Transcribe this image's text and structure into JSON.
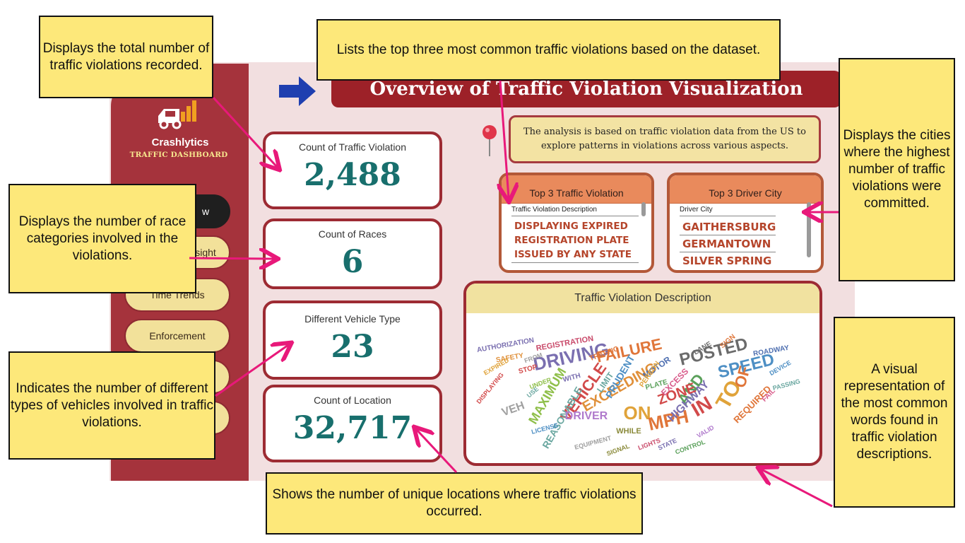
{
  "app": {
    "brand": "Crashlytics",
    "brand_sub": "TRAFFIC DASHBOARD",
    "title": "Overview of Traffic Violation Visualization",
    "description": "The analysis is based on traffic violation data from the US to explore patterns in violations across various aspects."
  },
  "nav": {
    "items": [
      {
        "label": "w",
        "active": true
      },
      {
        "label": "sight",
        "active": false
      },
      {
        "label": "Time Trends",
        "active": false
      },
      {
        "label": "Enforcement",
        "active": false
      },
      {
        "label": "",
        "active": false
      },
      {
        "label": "",
        "active": false
      }
    ]
  },
  "kpis": {
    "violations": {
      "label": "Count of Traffic Violation",
      "value": "2,488"
    },
    "races": {
      "label": "Count of Races",
      "value": "6"
    },
    "vehicle_types": {
      "label": "Different Vehicle Type",
      "value": "23"
    },
    "locations": {
      "label": "Count of Location",
      "value": "32,717"
    }
  },
  "top_violation": {
    "title": "Top 3 Traffic Violation",
    "column": "Traffic Violation Description",
    "items": [
      "DISPLAYING EXPIRED",
      "REGISTRATION PLATE",
      "ISSUED BY ANY STATE"
    ]
  },
  "top_city": {
    "title": "Top 3 Driver City",
    "column": "Driver City",
    "items": [
      "GAITHERSBURG",
      "GERMANTOWN",
      "SILVER SPRING"
    ]
  },
  "wordcloud": {
    "title": "Traffic Violation Description",
    "words": [
      {
        "t": "DRIVING",
        "c": "#7a6fb0"
      },
      {
        "t": "FAILURE",
        "c": "#e0763a"
      },
      {
        "t": "POSTED",
        "c": "#6b6b6b"
      },
      {
        "t": "SPEED",
        "c": "#4e8fc4"
      },
      {
        "t": "VEHICLE",
        "c": "#d24a4a"
      },
      {
        "t": "EXCEEDING",
        "c": "#e0903a"
      },
      {
        "t": "MAXIMUM",
        "c": "#8fbf4a"
      },
      {
        "t": "REASONABLE",
        "c": "#6aa7a0"
      },
      {
        "t": "ON",
        "c": "#e0a33a"
      },
      {
        "t": "MPH",
        "c": "#e0763a"
      },
      {
        "t": "IN",
        "c": "#d24a4a"
      },
      {
        "t": "TO",
        "c": "#e0a33a"
      },
      {
        "t": "OF",
        "c": "#e0763a"
      },
      {
        "t": "AND",
        "c": "#5aa05a"
      },
      {
        "t": "HIGHWAY",
        "c": "#7a6fb0"
      },
      {
        "t": "ZONE",
        "c": "#d24a4a"
      },
      {
        "t": "DRIVER",
        "c": "#b07acc"
      },
      {
        "t": "VEH",
        "c": "#a0a0a0"
      },
      {
        "t": "PRUDENT",
        "c": "#4e8fc4"
      },
      {
        "t": "MOTOR",
        "c": "#4e6fb0"
      },
      {
        "t": "EXCESS",
        "c": "#d85a8a"
      },
      {
        "t": "LIMIT",
        "c": "#6aa7a0"
      },
      {
        "t": "REQUIRED",
        "c": "#e0763a"
      },
      {
        "t": "WHILE",
        "c": "#8a8a3a"
      },
      {
        "t": "REGISTRATION",
        "c": "#c94a6a"
      },
      {
        "t": "AUTHORIZATION",
        "c": "#7a6fb0"
      },
      {
        "t": "SAFETY",
        "c": "#e0903a"
      },
      {
        "t": "STOP",
        "c": "#d24a4a"
      },
      {
        "t": "PLATE",
        "c": "#5aa05a"
      },
      {
        "t": "WITH",
        "c": "#7a6fb0"
      },
      {
        "t": "LICENSE",
        "c": "#4e8fc4"
      },
      {
        "t": "FROM",
        "c": "#a0a0a0"
      },
      {
        "t": "USE",
        "c": "#6aa7a0"
      },
      {
        "t": "PERSON",
        "c": "#e0a33a"
      },
      {
        "t": "UNDER",
        "c": "#8fbf4a"
      },
      {
        "t": "LANE",
        "c": "#6b6b6b"
      },
      {
        "t": "SIGN",
        "c": "#e0763a"
      },
      {
        "t": "ROADWAY",
        "c": "#4e6fb0"
      },
      {
        "t": "LIGHTS",
        "c": "#c94a6a"
      },
      {
        "t": "FAIL",
        "c": "#d85a8a"
      },
      {
        "t": "CONTROL",
        "c": "#5aa05a"
      },
      {
        "t": "VALID",
        "c": "#b07acc"
      },
      {
        "t": "STATE",
        "c": "#7a6fb0"
      },
      {
        "t": "TRAFFIC",
        "c": "#e0763a"
      },
      {
        "t": "DEVICE",
        "c": "#4e8fc4"
      },
      {
        "t": "SIGNAL",
        "c": "#8a8a3a"
      },
      {
        "t": "PASSING",
        "c": "#6aa7a0"
      },
      {
        "t": "EQUIPMENT",
        "c": "#a0a0a0"
      },
      {
        "t": "DISPLAYING",
        "c": "#d24a4a"
      },
      {
        "t": "EXPIRED",
        "c": "#e0a33a"
      }
    ]
  },
  "callouts": {
    "total": "Displays the total number of traffic violations recorded.",
    "top3": "Lists the top three most common traffic violations based on the dataset.",
    "cities": "Displays the cities where the highest number of traffic violations were committed.",
    "races": "Displays the number of race categories involved in the violations.",
    "vehicles": "Indicates the number of different types of vehicles involved in traffic violations.",
    "cloud": "A visual representation of the most common words found in traffic violation descriptions.",
    "locations": "Shows the number of unique locations where traffic violations occurred."
  },
  "colors": {
    "sidebar": "#a5333c",
    "title_bar": "#9d2128",
    "kpi_value": "#186f6d",
    "callout_bg": "#fde87a",
    "arrow": "#e8197a",
    "nav_arrow": "#1f3fb0"
  }
}
